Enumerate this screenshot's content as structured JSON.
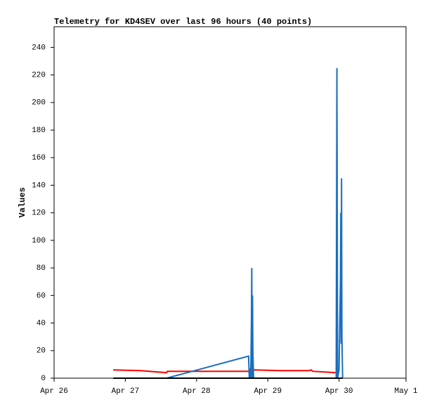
{
  "chart_data": {
    "type": "line",
    "title": "Telemetry for KD4SEV over last 96 hours (40 points)",
    "ylabel": "Values",
    "xlim": [
      0,
      4.94
    ],
    "xticks": [
      {
        "value": 0,
        "label": "Apr 26"
      },
      {
        "value": 1,
        "label": "Apr 27"
      },
      {
        "value": 2,
        "label": "Apr 28"
      },
      {
        "value": 3,
        "label": "Apr 29"
      },
      {
        "value": 4,
        "label": "Apr 30"
      },
      {
        "value": 4.94,
        "label": "May 1"
      }
    ],
    "ylim": [
      0,
      255
    ],
    "yticks": [
      0,
      20,
      40,
      60,
      80,
      100,
      120,
      140,
      160,
      180,
      200,
      220,
      240
    ],
    "series": [
      {
        "color": "#ff0000",
        "x": [
          0.83,
          1.21,
          1.58,
          1.59,
          2.2,
          2.74,
          2.81,
          3.19,
          3.58,
          3.61,
          3.63,
          3.95
        ],
        "values": [
          6,
          5.5,
          4,
          5,
          5,
          5,
          6,
          5.5,
          5.5,
          6,
          5,
          4
        ]
      },
      {
        "color": "#1a6ebd",
        "x": [
          1.58,
          2.73,
          2.74,
          2.75,
          2.76,
          2.77,
          2.775,
          2.78,
          2.785,
          2.79,
          2.8,
          3.96,
          3.97,
          3.98,
          4.0,
          4.02,
          4.025,
          4.03,
          4.035,
          4.04,
          4.05
        ],
        "values": [
          0,
          16,
          0,
          7,
          0,
          40,
          80,
          0,
          60,
          20,
          0,
          0,
          225,
          0,
          6,
          73,
          120,
          25,
          145,
          30,
          0
        ]
      },
      {
        "color": "#000000",
        "x": [
          0.83,
          2.74,
          3.98,
          4.05
        ],
        "values": [
          0,
          0,
          0,
          0
        ]
      }
    ]
  }
}
